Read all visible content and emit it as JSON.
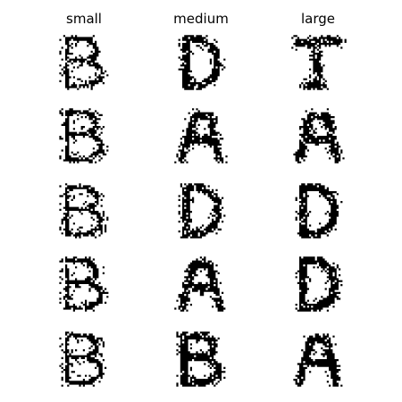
{
  "columns": [
    {
      "title": "small"
    },
    {
      "title": "medium"
    },
    {
      "title": "large"
    }
  ],
  "grid": {
    "rows": 5,
    "cols": 3,
    "background": "#ffffff",
    "ink": "#000000",
    "cells": [
      [
        {
          "letter": "B"
        },
        {
          "letter": "D"
        },
        {
          "letter": "T"
        }
      ],
      [
        {
          "letter": "B"
        },
        {
          "letter": "A"
        },
        {
          "letter": "A"
        }
      ],
      [
        {
          "letter": "B"
        },
        {
          "letter": "D"
        },
        {
          "letter": "D"
        }
      ],
      [
        {
          "letter": "B"
        },
        {
          "letter": "A"
        },
        {
          "letter": "D"
        }
      ],
      [
        {
          "letter": "B"
        },
        {
          "letter": "B"
        },
        {
          "letter": "A"
        }
      ]
    ]
  }
}
